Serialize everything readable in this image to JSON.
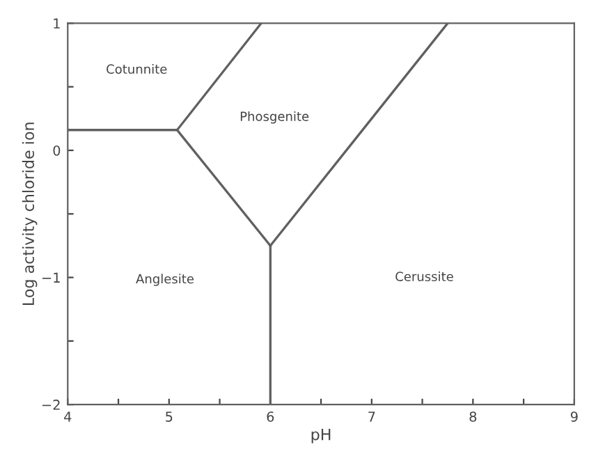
{
  "chart_data": {
    "type": "line",
    "xlabel": "pH",
    "ylabel": "Log activity chloride ion",
    "xlim": [
      4,
      9
    ],
    "ylim": [
      -2,
      1
    ],
    "xticks": [
      4,
      {
        "value": 4.5,
        "label": null
      },
      5,
      {
        "value": 5.5,
        "label": null
      },
      6,
      {
        "value": 6.5,
        "label": null
      },
      7,
      {
        "value": 7.5,
        "label": null
      },
      8,
      {
        "value": 8.5,
        "label": null
      },
      9
    ],
    "yticks": [
      -2,
      {
        "value": -1.5,
        "label": null
      },
      -1,
      {
        "value": -0.5,
        "label": null
      },
      0,
      {
        "value": 0.5,
        "label": null
      },
      1
    ],
    "grid": false,
    "legend": false,
    "marker": "none",
    "line_style": "solid",
    "series": [
      {
        "color": "#606060",
        "x": [
          4,
          5.08
        ],
        "values": [
          0.16,
          0.16
        ]
      },
      {
        "color": "#606060",
        "x": [
          5.08,
          5.91
        ],
        "values": [
          0.16,
          1
        ]
      },
      {
        "color": "#606060",
        "x": [
          5.08,
          6.0
        ],
        "values": [
          0.16,
          -0.75
        ]
      },
      {
        "color": "#606060",
        "x": [
          6.0,
          7.75
        ],
        "values": [
          -0.75,
          1
        ]
      },
      {
        "color": "#606060",
        "x": [
          6.0,
          6.0
        ],
        "values": [
          -0.75,
          -2
        ]
      }
    ],
    "annotations": [
      "Cotunnite",
      "Phosgenite",
      "Anglesite",
      "Cerussite"
    ]
  }
}
